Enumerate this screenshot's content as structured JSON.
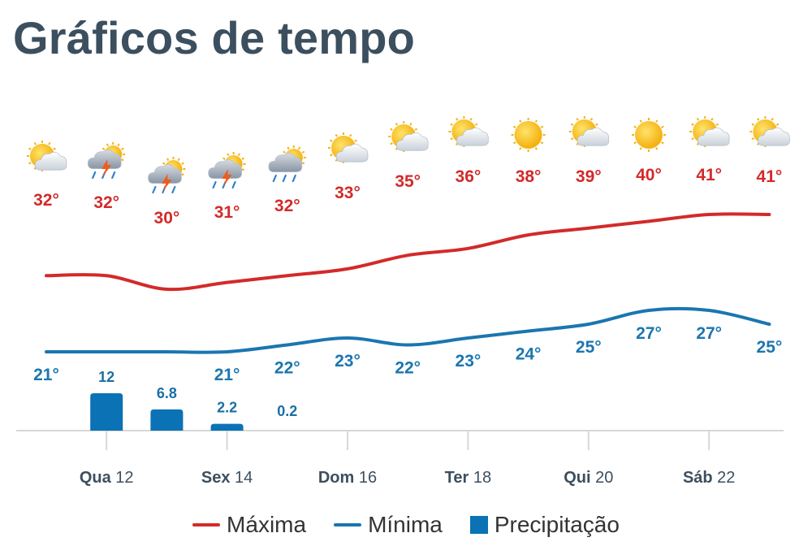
{
  "header": {
    "title": "Gráficos de tempo"
  },
  "colors": {
    "max": "#d32a2a",
    "min": "#1a76b0",
    "precip": "#0a72b5",
    "title": "#3c4f5f",
    "axis": "#d7d7d7"
  },
  "legend": [
    {
      "key": "max",
      "label": "Máxima",
      "kind": "line",
      "color": "#d32a2a"
    },
    {
      "key": "min",
      "label": "Mínima",
      "kind": "line",
      "color": "#1a76b0"
    },
    {
      "key": "precip",
      "label": "Precipitação",
      "kind": "box",
      "color": "#0a72b5"
    }
  ],
  "chart_data": {
    "type": "line",
    "day_count": 13,
    "x_tick_labels": [
      {
        "day_index": 1,
        "weekday": "Qua",
        "day": "12"
      },
      {
        "day_index": 3,
        "weekday": "Sex",
        "day": "14"
      },
      {
        "day_index": 5,
        "weekday": "Dom",
        "day": "16"
      },
      {
        "day_index": 7,
        "weekday": "Ter",
        "day": "18"
      },
      {
        "day_index": 9,
        "weekday": "Qui",
        "day": "20"
      },
      {
        "day_index": 11,
        "weekday": "Sáb",
        "day": "22"
      }
    ],
    "series": [
      {
        "name": "Máxima",
        "key": "max",
        "unit": "°",
        "values": [
          32,
          32,
          30,
          31,
          32,
          33,
          35,
          36,
          38,
          39,
          40,
          41,
          41
        ]
      },
      {
        "name": "Mínima",
        "key": "min",
        "unit": "°",
        "values": [
          21,
          null,
          null,
          21,
          22,
          23,
          22,
          23,
          24,
          25,
          27,
          27,
          25
        ]
      },
      {
        "name": "Precipitação",
        "key": "precip",
        "type": "bar",
        "values": [
          null,
          12,
          6.8,
          2.2,
          0.2,
          null,
          null,
          null,
          null,
          null,
          null,
          null,
          null
        ],
        "labels": [
          null,
          "12",
          "6.8",
          "2.2",
          "0.2",
          null,
          null,
          null,
          null,
          null,
          null,
          null,
          null
        ]
      }
    ],
    "icons": [
      "sun-cloud-icon",
      "thunderstorm-icon",
      "thunderstorm-icon",
      "thunderstorm-icon",
      "rain-cloud-icon",
      "sun-cloud-icon",
      "sun-cloud-icon",
      "sun-cloud-icon",
      "sun-icon",
      "sun-cloud-icon",
      "sun-icon",
      "sun-cloud-icon",
      "sun-cloud-icon"
    ],
    "grid": false
  }
}
